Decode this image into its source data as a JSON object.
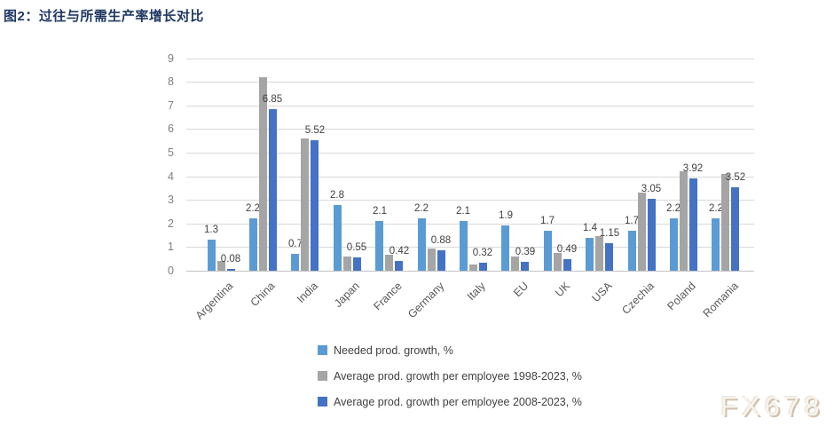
{
  "page": {
    "title": "图2：过往与所需生产率增长对比",
    "watermark": "FX678"
  },
  "colors": {
    "title": "#1f3864",
    "axis_text": "#7f7f7f",
    "category_text": "#595959",
    "data_label_text": "#404040",
    "legend_text": "#404040",
    "gridline": "#d9d9d9",
    "bar_needed": "#5b9bd5",
    "bar_1998_2023": "#a5a5a5",
    "bar_2008_2023": "#4472c4",
    "watermark_fill": "#f7f4ee",
    "watermark_shadow": "#d2c1ab"
  },
  "chart_data": {
    "type": "bar",
    "title": "图2：过往与所需生产率增长对比",
    "categories": [
      "Argentina",
      "China",
      "India",
      "Japan",
      "France",
      "Germany",
      "Italy",
      "EU",
      "UK",
      "USA",
      "Czechia",
      "Poland",
      "Romania"
    ],
    "series": [
      {
        "name": "Needed prod. growth, %",
        "color": "#5b9bd5",
        "values": [
          1.3,
          2.2,
          0.7,
          2.8,
          2.1,
          2.2,
          2.1,
          1.9,
          1.7,
          1.4,
          1.7,
          2.2,
          2.2
        ],
        "data_labels": [
          "1.3",
          "2.2",
          "0.7",
          "2.8",
          "2.1",
          "2.2",
          "2.1",
          "1.9",
          "1.7",
          "1.4",
          "1.7",
          "2.2",
          "2.2"
        ]
      },
      {
        "name": "Average prod. growth per employee 1998-2023, %",
        "color": "#a5a5a5",
        "values": [
          0.4,
          8.2,
          5.6,
          0.62,
          0.68,
          0.95,
          0.25,
          0.62,
          0.74,
          1.45,
          3.3,
          4.2,
          4.1
        ],
        "data_labels": null
      },
      {
        "name": "Average prod. growth per employee 2008-2023, %",
        "color": "#4472c4",
        "values": [
          0.08,
          6.85,
          5.52,
          0.55,
          0.42,
          0.88,
          0.32,
          0.39,
          0.49,
          1.15,
          3.05,
          3.92,
          3.52
        ],
        "data_labels": [
          "0.08",
          "6.85",
          "5.52",
          "0.55",
          "0.42",
          "0.88",
          "0.32",
          "0.39",
          "0.49",
          "1.15",
          "3.05",
          "3.92",
          "3.52"
        ]
      }
    ],
    "xlabel": "",
    "ylabel": "",
    "ylim": [
      0,
      9
    ],
    "yticks": [
      0,
      1,
      2,
      3,
      4,
      5,
      6,
      7,
      8,
      9
    ],
    "grid": true,
    "legend_position": "bottom-left-stacked",
    "x_label_rotation_deg": -45
  }
}
